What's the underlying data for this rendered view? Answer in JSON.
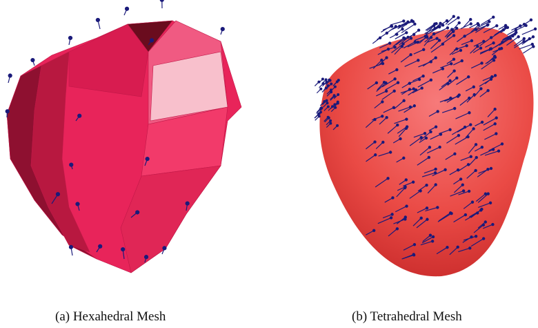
{
  "captions": {
    "a": "(a) Hexahedral Mesh",
    "b": "(b) Tetrahedral Mesh"
  }
}
